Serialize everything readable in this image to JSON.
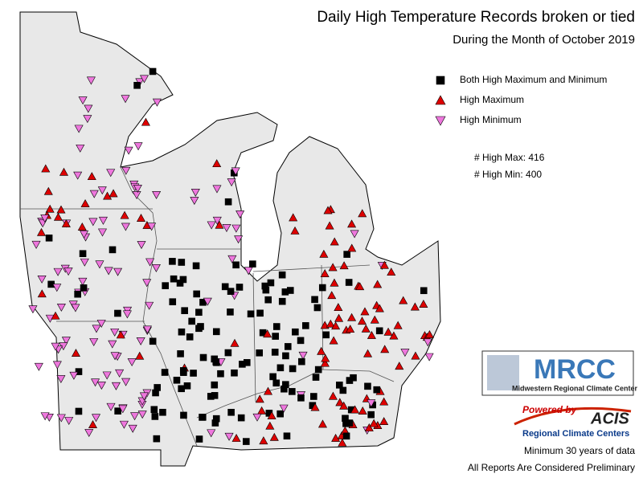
{
  "header": {
    "title": "Daily High Temperature Records broken or tied",
    "subtitle": "During the Month of October 2019"
  },
  "legend": {
    "items": [
      {
        "label": "Both High Maximum and Minimum",
        "symbol": "square",
        "color": "#000000"
      },
      {
        "label": "High Maximum",
        "symbol": "triangle-up",
        "color": "#dd0000"
      },
      {
        "label": "High Minimum",
        "symbol": "triangle-down",
        "color": "#ee77dd"
      }
    ]
  },
  "counts": [
    "# High Max: 416",
    "# High Min: 400"
  ],
  "logos": {
    "mrcc": "MRCC",
    "mrcc_name": "Midwestern Regional Climate Center",
    "powered": "Powered by",
    "acis": "ACIS",
    "acis_name": "Regional Climate Centers"
  },
  "notes": [
    "Minimum 30 years of data",
    "All Reports Are Considered Preliminary"
  ]
}
